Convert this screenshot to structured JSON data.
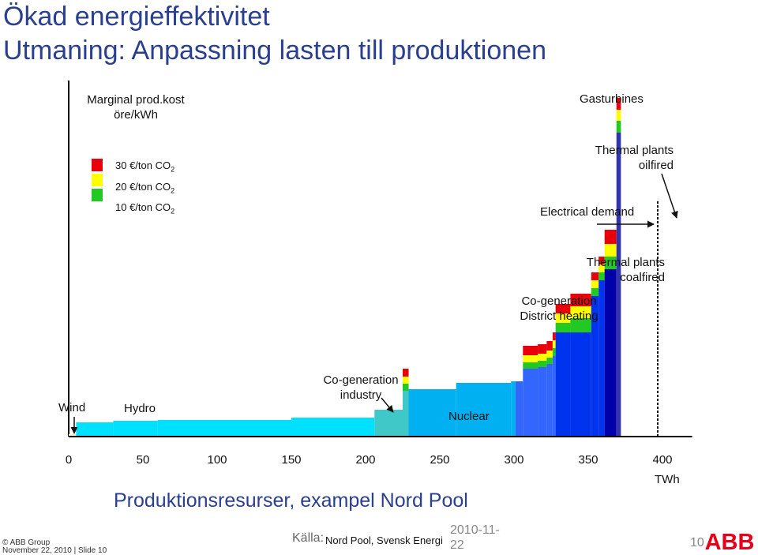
{
  "slide": {
    "title_line1": "Ökad energieffektivitet",
    "title_line2": "Utmaning: Anpassning lasten till produktionen",
    "subtitle": "Produktionsresurser, exampel Nord Pool",
    "footer_copyright": "© ABB Group",
    "footer_date_slide": "November 22, 2010 | Slide 10",
    "source_label": "Källa:",
    "source_value": "Nord Pool, Svensk Energi",
    "date_line1": "2010-11-",
    "date_line2": "22",
    "page_number": "10",
    "logo_text": "ABB"
  },
  "chart_data": {
    "type": "step-bar",
    "ylabel_line1": "Marginal prod.kost",
    "ylabel_line2": "öre/kWh",
    "xlabel": "TWh",
    "x_ticks": [
      0,
      50,
      100,
      150,
      200,
      250,
      300,
      350,
      400
    ],
    "xlim": [
      0,
      420
    ],
    "legend": [
      {
        "label": "30  €/ton CO",
        "sub": "2",
        "color": "#e8000b"
      },
      {
        "label": "20  €/ton CO",
        "sub": "2",
        "color": "#ffff00"
      },
      {
        "label": "10  €/ton CO",
        "sub": "2",
        "color": "#22c922"
      }
    ],
    "annotations": [
      {
        "name": "label-wind",
        "text": "Wind"
      },
      {
        "name": "label-hydro",
        "text": "Hydro"
      },
      {
        "name": "label-cogen-industry-1",
        "text": "Co-generation"
      },
      {
        "name": "label-cogen-industry-2",
        "text": "industry"
      },
      {
        "name": "label-nuclear",
        "text": "Nuclear"
      },
      {
        "name": "label-cogen-district-1",
        "text": "Co-generation"
      },
      {
        "name": "label-cogen-district-2",
        "text": "District heating"
      },
      {
        "name": "label-coal-1",
        "text": "Thermal plants"
      },
      {
        "name": "label-coal-2",
        "text": "coalfired"
      },
      {
        "name": "label-electrical-demand",
        "text": "Electrical demand"
      },
      {
        "name": "label-oil-1",
        "text": "Thermal plants"
      },
      {
        "name": "label-oil-2",
        "text": "oilfired"
      },
      {
        "name": "label-gasturbines",
        "text": "Gasturbines"
      }
    ],
    "segments": [
      {
        "name": "wind",
        "x0": 0,
        "x1": 5,
        "base": 3,
        "color": "#f2f7c0"
      },
      {
        "name": "hydro-1",
        "x0": 5,
        "x1": 30,
        "base": 18,
        "color": "#00e0ff"
      },
      {
        "name": "hydro-2",
        "x0": 30,
        "x1": 60,
        "base": 20,
        "color": "#00e0ff"
      },
      {
        "name": "hydro-3",
        "x0": 60,
        "x1": 150,
        "base": 21,
        "color": "#00e0ff"
      },
      {
        "name": "hydro-4",
        "x0": 150,
        "x1": 206,
        "base": 24,
        "color": "#00e0ff"
      },
      {
        "name": "cogen-industry-1",
        "x0": 206,
        "x1": 225,
        "base": 34,
        "color": "#40c8c8"
      },
      {
        "name": "cogen-industry-2",
        "x0": 225,
        "x1": 229,
        "base": 58,
        "c10": 9,
        "c20": 9,
        "c30": 10,
        "color": "#40c8c8"
      },
      {
        "name": "nuclear-1",
        "x0": 229,
        "x1": 261,
        "base": 60,
        "color": "#00b0f0"
      },
      {
        "name": "nuclear-2",
        "x0": 261,
        "x1": 298,
        "base": 68,
        "color": "#00b0f0"
      },
      {
        "name": "nuclear-3",
        "x0": 298,
        "x1": 301,
        "base": 70,
        "color": "#00b0f0"
      },
      {
        "name": "district-1",
        "x0": 301,
        "x1": 306,
        "base": 70,
        "color": "#3366ff"
      },
      {
        "name": "district-2",
        "x0": 306,
        "x1": 316,
        "base": 86,
        "c10": 8,
        "c20": 9,
        "c30": 12,
        "color": "#3366ff"
      },
      {
        "name": "district-3",
        "x0": 316,
        "x1": 322,
        "base": 88,
        "c10": 8,
        "c20": 9,
        "c30": 12,
        "color": "#3366ff"
      },
      {
        "name": "district-4",
        "x0": 322,
        "x1": 326,
        "base": 92,
        "c10": 8,
        "c20": 9,
        "c30": 12,
        "color": "#3366ff"
      },
      {
        "name": "district-5",
        "x0": 326,
        "x1": 328,
        "base": 102,
        "c10": 10,
        "c20": 10,
        "c30": 10,
        "color": "#3366ff"
      },
      {
        "name": "coal-1",
        "x0": 328,
        "x1": 338,
        "base": 132,
        "c10": 12,
        "c20": 12,
        "c30": 12,
        "color": "#0033ee"
      },
      {
        "name": "coal-2",
        "x0": 338,
        "x1": 352,
        "base": 132,
        "c10": 18,
        "c20": 15,
        "c30": 16,
        "color": "#0033ee"
      },
      {
        "name": "coal-3",
        "x0": 352,
        "x1": 357,
        "base": 178,
        "c10": 10,
        "c20": 10,
        "c30": 10,
        "color": "#0033ee"
      },
      {
        "name": "coal-4",
        "x0": 357,
        "x1": 361,
        "base": 198,
        "c10": 10,
        "c20": 10,
        "c30": 10,
        "color": "#0033ee"
      },
      {
        "name": "oil",
        "x0": 361,
        "x1": 369,
        "base": 212,
        "c10": 16,
        "c20": 16,
        "c30": 18,
        "color": "#0000aa"
      },
      {
        "name": "gasturbines",
        "x0": 369,
        "x1": 372,
        "base": 385,
        "c10": 15,
        "c20": 14,
        "c30": 15,
        "color": "#3333aa"
      }
    ]
  }
}
